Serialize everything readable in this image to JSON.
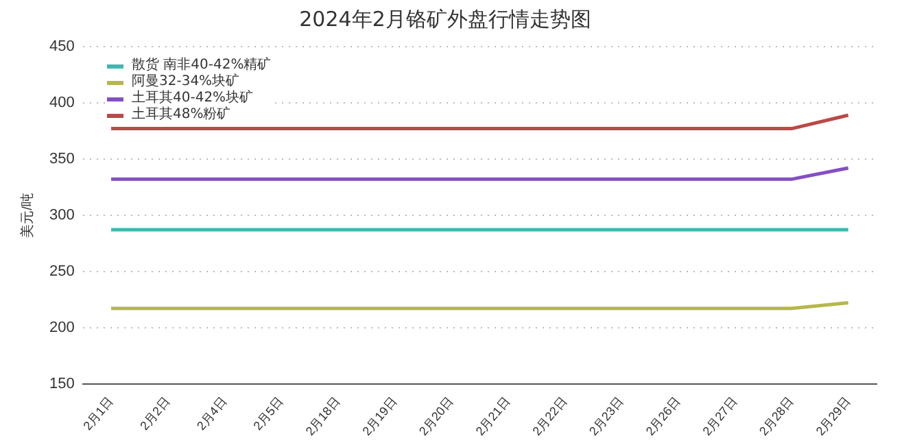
{
  "chart_data": {
    "type": "line",
    "title": "2024年2月铬矿外盘行情走势图",
    "ylabel": "美元/吨",
    "categories": [
      "2月1日",
      "2月2日",
      "2月4日",
      "2月5日",
      "2月18日",
      "2月19日",
      "2月20日",
      "2月21日",
      "2月22日",
      "2月23日",
      "2月26日",
      "2月27日",
      "2月28日",
      "2月29日"
    ],
    "series": [
      {
        "name": "散货 南非40-42%精矿",
        "color": "#3fb8b0",
        "values": [
          287,
          287,
          287,
          287,
          287,
          287,
          287,
          287,
          287,
          287,
          287,
          287,
          287,
          287
        ]
      },
      {
        "name": "阿曼32-34%块矿",
        "color": "#b5b84a",
        "values": [
          217,
          217,
          217,
          217,
          217,
          217,
          217,
          217,
          217,
          217,
          217,
          217,
          217,
          222
        ]
      },
      {
        "name": "土耳其40-42%块矿",
        "color": "#8450c0",
        "values": [
          332,
          332,
          332,
          332,
          332,
          332,
          332,
          332,
          332,
          332,
          332,
          332,
          332,
          342
        ]
      },
      {
        "name": "土耳其48%粉矿",
        "color": "#b84a48",
        "values": [
          377,
          377,
          377,
          377,
          377,
          377,
          377,
          377,
          377,
          377,
          377,
          377,
          377,
          389
        ]
      }
    ],
    "ylim": [
      150,
      450
    ],
    "yticks": [
      150,
      200,
      250,
      300,
      350,
      400,
      450
    ],
    "grid": "y",
    "legend": "top left",
    "marker": "none",
    "line_style": "solid"
  }
}
